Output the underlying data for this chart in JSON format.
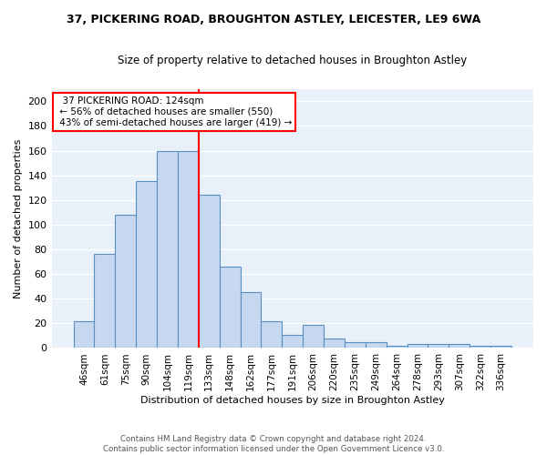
{
  "title1": "37, PICKERING ROAD, BROUGHTON ASTLEY, LEICESTER, LE9 6WA",
  "title2": "Size of property relative to detached houses in Broughton Astley",
  "xlabel": "Distribution of detached houses by size in Broughton Astley",
  "ylabel": "Number of detached properties",
  "categories": [
    "46sqm",
    "61sqm",
    "75sqm",
    "90sqm",
    "104sqm",
    "119sqm",
    "133sqm",
    "148sqm",
    "162sqm",
    "177sqm",
    "191sqm",
    "206sqm",
    "220sqm",
    "235sqm",
    "249sqm",
    "264sqm",
    "278sqm",
    "293sqm",
    "307sqm",
    "322sqm",
    "336sqm"
  ],
  "values": [
    22,
    76,
    108,
    135,
    160,
    160,
    124,
    66,
    45,
    22,
    11,
    19,
    8,
    5,
    5,
    2,
    3,
    3,
    3,
    2,
    2
  ],
  "bar_color": "#c5d8f0",
  "bar_edge_color": "#5a8fc3",
  "vline_x": 5.5,
  "vline_color": "red",
  "annotation_text": "  37 PICKERING ROAD: 124sqm  \n ← 56% of detached houses are smaller (550)\n 43% of semi-detached houses are larger (419) →",
  "annotation_box_color": "white",
  "annotation_box_edge_color": "red",
  "ylim": [
    0,
    210
  ],
  "yticks": [
    0,
    20,
    40,
    60,
    80,
    100,
    120,
    140,
    160,
    180,
    200
  ],
  "footer": "Contains HM Land Registry data © Crown copyright and database right 2024.\nContains public sector information licensed under the Open Government Licence v3.0.",
  "background_color": "#e8f0fa",
  "grid_color": "white"
}
